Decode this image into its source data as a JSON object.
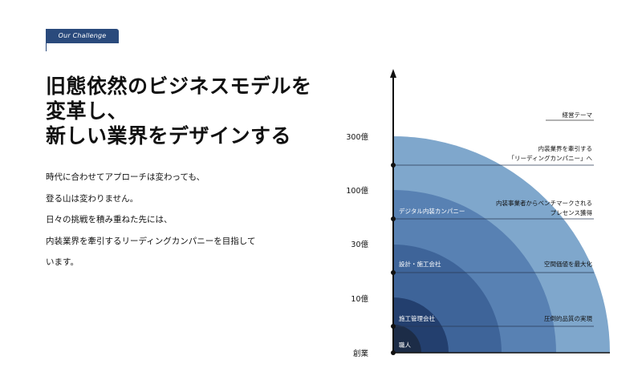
{
  "badge": {
    "label": "Our Challenge"
  },
  "headline": {
    "lines": [
      "旧態依然のビジネスモデルを",
      "変革し、",
      "新しい業界をデザインする"
    ]
  },
  "body": {
    "lines": [
      "時代に合わせてアプローチは変わっても、",
      "登る山は変わりません。",
      "日々の挑戦を積み重ねた先には、",
      "内装業界を牽引するリーディングカンパニーを目指して",
      "います。"
    ]
  },
  "colors": {
    "ring_1": "#1c2c47",
    "ring_2": "#233f6e",
    "ring_3": "#3e6499",
    "ring_4": "#5881b3",
    "ring_5": "#7fa7cc"
  },
  "chart_data": {
    "type": "other",
    "y_axis_ticks": [
      "300億",
      "100億",
      "30億",
      "10億",
      "創業"
    ],
    "stages": [
      "職人",
      "施工管理会社",
      "設計・施工会社",
      "デジタル内装カンパニー"
    ],
    "theme_header": "経営テーマ",
    "themes": [
      [
        "内装業界を牽引する",
        "「リーディングカンパニー」へ"
      ],
      [
        "内装事業者からベンチマークされる",
        "プレセンス獲得"
      ],
      [
        "空間価値を最大化"
      ],
      [
        "圧倒的品質の実現"
      ]
    ]
  }
}
